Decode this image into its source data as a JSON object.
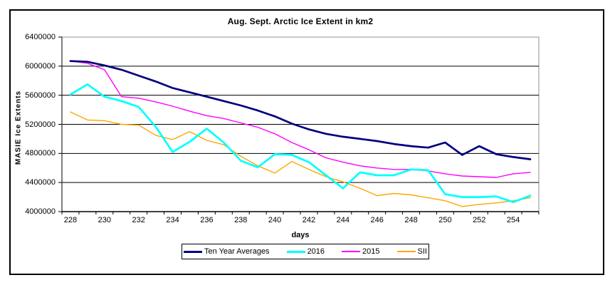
{
  "figure": {
    "title": "Aug. Sept. Arctic Ice Extent in km2"
  },
  "chart_data": {
    "type": "line",
    "title": "Aug. Sept. Arctic Ice Extent in km2",
    "xlabel": "days",
    "ylabel": "MASIE Ice Extents",
    "grid": "horizontal",
    "legend_position": "bottom-center",
    "ylim": [
      4000000,
      6400000
    ],
    "y_ticks": [
      6400000,
      6000000,
      5600000,
      5200000,
      4800000,
      4400000,
      4000000
    ],
    "x": [
      228,
      229,
      230,
      231,
      232,
      233,
      234,
      235,
      236,
      237,
      238,
      239,
      240,
      241,
      242,
      243,
      244,
      245,
      246,
      247,
      248,
      249,
      250,
      251,
      252,
      253,
      254,
      255
    ],
    "x_tick_labels": [
      228,
      230,
      232,
      234,
      236,
      238,
      240,
      242,
      244,
      246,
      248,
      250,
      252,
      254
    ],
    "series": [
      {
        "name": "Ten Year Averages",
        "color": "#000080",
        "thick": true,
        "values": [
          6070000,
          6060000,
          6010000,
          5950000,
          5870000,
          5790000,
          5700000,
          5640000,
          5580000,
          5520000,
          5460000,
          5390000,
          5310000,
          5210000,
          5130000,
          5070000,
          5030000,
          5000000,
          4970000,
          4930000,
          4900000,
          4880000,
          4950000,
          4780000,
          4900000,
          4790000,
          4750000,
          4720000
        ]
      },
      {
        "name": "2016",
        "color": "#00FFFF",
        "thick": true,
        "values": [
          5610000,
          5750000,
          5580000,
          5520000,
          5440000,
          5170000,
          4820000,
          4960000,
          5140000,
          4950000,
          4700000,
          4610000,
          4790000,
          4780000,
          4680000,
          4500000,
          4320000,
          4540000,
          4500000,
          4500000,
          4580000,
          4570000,
          4240000,
          4200000,
          4200000,
          4210000,
          4130000,
          4220000
        ]
      },
      {
        "name": "2015",
        "color": "#FF00FF",
        "thick": false,
        "values": [
          6070000,
          6040000,
          5950000,
          5580000,
          5560000,
          5510000,
          5450000,
          5380000,
          5320000,
          5280000,
          5220000,
          5160000,
          5070000,
          4950000,
          4850000,
          4740000,
          4680000,
          4630000,
          4600000,
          4580000,
          4580000,
          4560000,
          4520000,
          4490000,
          4480000,
          4470000,
          4520000,
          4540000
        ]
      },
      {
        "name": "SII",
        "color": "#FFA500",
        "thick": false,
        "values": [
          5370000,
          5260000,
          5250000,
          5200000,
          5190000,
          5050000,
          4990000,
          5100000,
          4980000,
          4920000,
          4760000,
          4630000,
          4530000,
          4690000,
          4580000,
          4480000,
          4410000,
          4320000,
          4220000,
          4250000,
          4230000,
          4190000,
          4150000,
          4070000,
          4100000,
          4120000,
          4150000,
          4190000
        ]
      }
    ]
  }
}
